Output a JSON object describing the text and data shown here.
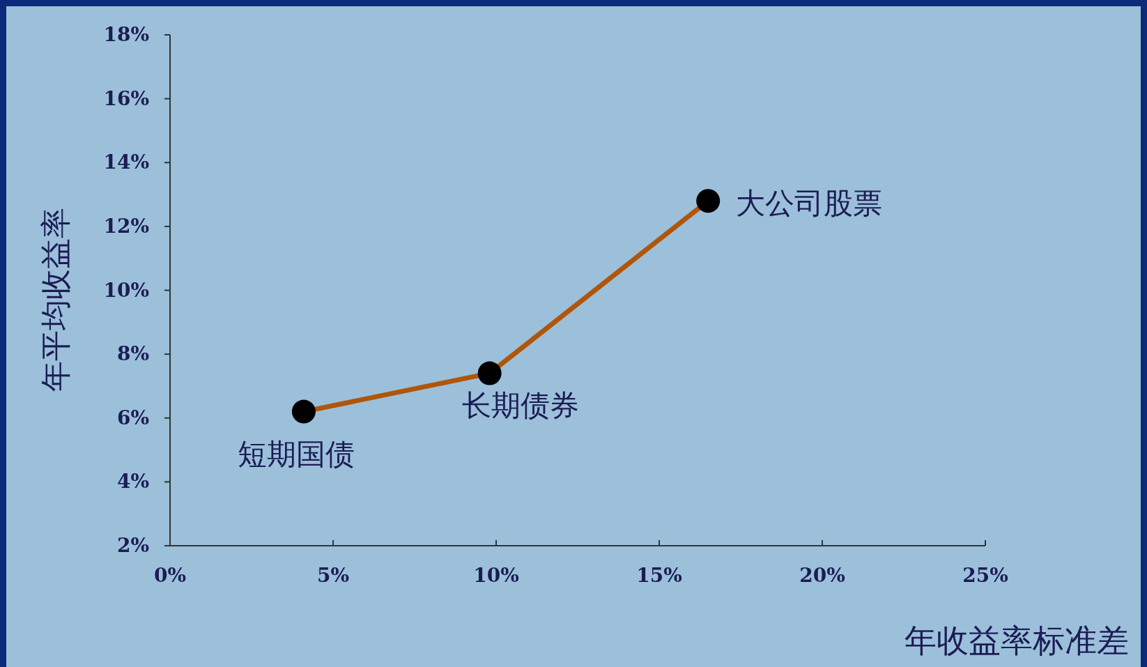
{
  "chart_data": {
    "type": "line",
    "xlabel": "年收益率标准差",
    "ylabel": "年平均收益率",
    "x": [
      4.1,
      9.8,
      16.5
    ],
    "series": [
      {
        "color": "#b0560a",
        "values": [
          6.2,
          7.4,
          12.8
        ]
      }
    ],
    "marker": "circle",
    "line_style": "solid",
    "xlim": [
      0,
      25
    ],
    "ylim": [
      2,
      18
    ],
    "xticks": [
      {
        "value": 0,
        "label": "0%"
      },
      {
        "value": 5,
        "label": "5%"
      },
      {
        "value": 10,
        "label": "10%"
      },
      {
        "value": 15,
        "label": "15%"
      },
      {
        "value": 20,
        "label": "20%"
      },
      {
        "value": 25,
        "label": "25%"
      }
    ],
    "yticks": [
      {
        "value": 2,
        "label": "2%"
      },
      {
        "value": 4,
        "label": "4%"
      },
      {
        "value": 6,
        "label": "6%"
      },
      {
        "value": 8,
        "label": "8%"
      },
      {
        "value": 10,
        "label": "10%"
      },
      {
        "value": 12,
        "label": "12%"
      },
      {
        "value": 14,
        "label": "14%"
      },
      {
        "value": 16,
        "label": "16%"
      },
      {
        "value": 18,
        "label": "18%"
      }
    ],
    "annotations": [
      {
        "text": "短期国债",
        "x": 4.1,
        "y": 6.2
      },
      {
        "text": "长期债券",
        "x": 9.8,
        "y": 7.4
      },
      {
        "text": "大公司股票",
        "x": 16.5,
        "y": 12.8
      }
    ]
  }
}
